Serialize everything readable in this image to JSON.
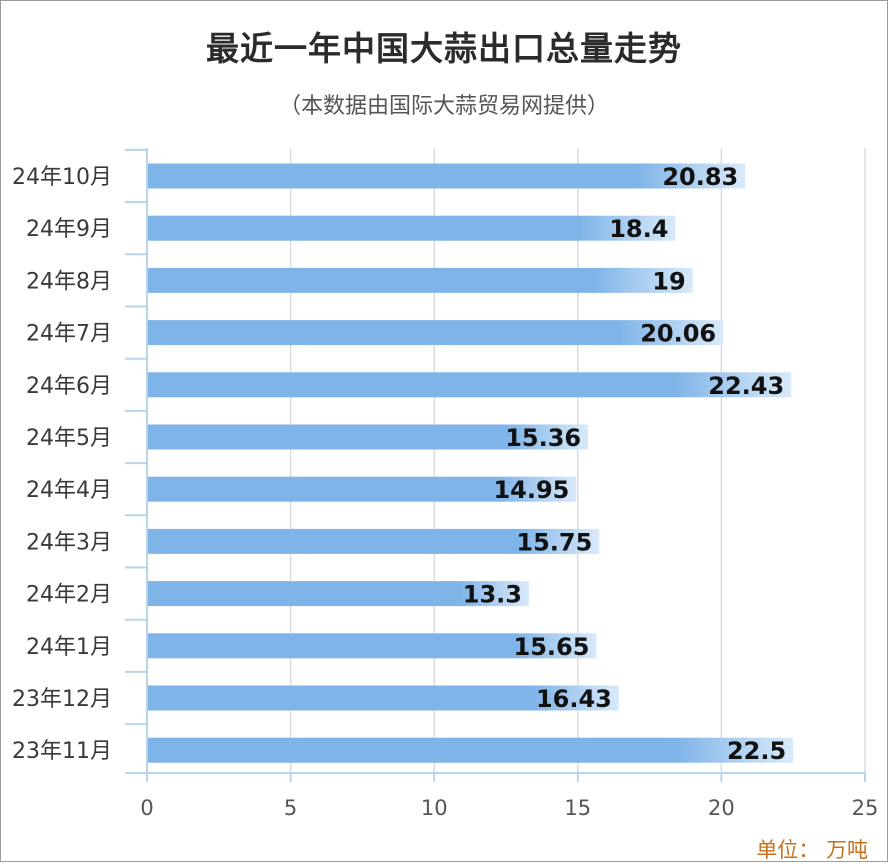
{
  "title": "最近一年中国大蒜出口总量走势",
  "subtitle": "（本数据由国际大蒜贸易网提供）",
  "unit_label": "单位：  万吨",
  "colors": {
    "bar": "#7fb4e8",
    "bar_light": "#d9eaf9",
    "grid": "#d9dde2",
    "axis": "#b9d4ea",
    "text": "#333333",
    "unit": "#c8701c"
  },
  "chart_data": {
    "type": "bar",
    "orientation": "horizontal",
    "categories": [
      "24年10月",
      "24年9月",
      "24年8月",
      "24年7月",
      "24年6月",
      "24年5月",
      "24年4月",
      "24年3月",
      "24年2月",
      "24年1月",
      "23年12月",
      "23年11月"
    ],
    "values": [
      20.83,
      18.4,
      19,
      20.06,
      22.43,
      15.36,
      14.95,
      15.75,
      13.3,
      15.65,
      16.43,
      22.5
    ],
    "value_labels": [
      "20.83",
      "18.4",
      "19",
      "20.06",
      "22.43",
      "15.36",
      "14.95",
      "15.75",
      "13.3",
      "15.65",
      "16.43",
      "22.5"
    ],
    "xlim": [
      0,
      25
    ],
    "xticks": [
      "0",
      "5",
      "10",
      "15",
      "20",
      "25"
    ],
    "grid": true
  }
}
